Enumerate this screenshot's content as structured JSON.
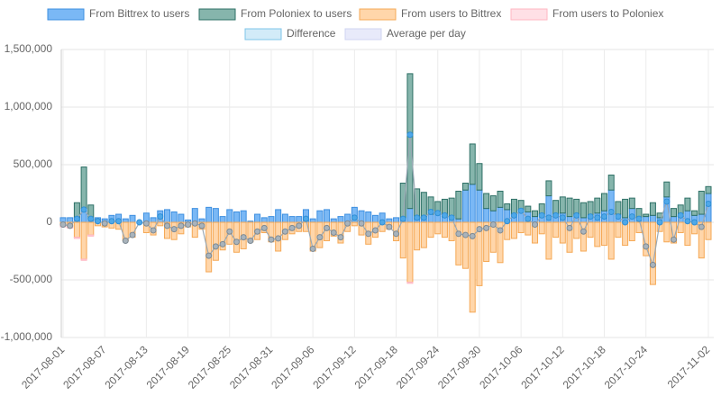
{
  "chart_data": {
    "type": "bar",
    "categories": [
      "2017-08-01",
      null,
      null,
      null,
      null,
      null,
      "2017-08-07",
      null,
      null,
      null,
      null,
      null,
      "2017-08-13",
      null,
      null,
      null,
      null,
      null,
      "2017-08-19",
      null,
      null,
      null,
      null,
      null,
      "2017-08-25",
      null,
      null,
      null,
      null,
      null,
      "2017-08-31",
      null,
      null,
      null,
      null,
      null,
      "2017-09-06",
      null,
      null,
      null,
      null,
      null,
      "2017-09-12",
      null,
      null,
      null,
      null,
      null,
      "2017-09-18",
      null,
      null,
      null,
      null,
      null,
      "2017-09-24",
      null,
      null,
      null,
      null,
      null,
      "2017-09-30",
      null,
      null,
      null,
      null,
      null,
      "2017-10-06",
      null,
      null,
      null,
      null,
      null,
      "2017-10-12",
      null,
      null,
      null,
      null,
      null,
      "2017-10-18",
      null,
      null,
      null,
      null,
      null,
      "2017-10-24",
      null,
      null,
      null,
      null,
      null,
      null,
      null,
      null,
      "2017-11-02"
    ],
    "series": [
      {
        "name": "From Bittrex to users",
        "color": "#7ab8f5",
        "stroke": "#3d8fe0",
        "stack": "positive",
        "values": [
          40000,
          40000,
          40000,
          120000,
          30000,
          40000,
          30000,
          60000,
          70000,
          30000,
          60000,
          0,
          80000,
          40000,
          100000,
          110000,
          90000,
          70000,
          20000,
          120000,
          30000,
          130000,
          120000,
          50000,
          110000,
          90000,
          100000,
          10000,
          70000,
          40000,
          50000,
          110000,
          70000,
          50000,
          50000,
          110000,
          30000,
          100000,
          110000,
          30000,
          50000,
          70000,
          130000,
          100000,
          90000,
          60000,
          80000,
          30000,
          40000,
          40000,
          120000,
          30000,
          50000,
          70000,
          80000,
          50000,
          40000,
          30000,
          280000,
          330000,
          280000,
          120000,
          100000,
          130000,
          110000,
          70000,
          110000,
          90000,
          50000,
          70000,
          230000,
          70000,
          80000,
          50000,
          70000,
          40000,
          40000,
          80000,
          100000,
          280000,
          70000,
          40000,
          120000,
          30000,
          50000,
          60000,
          40000,
          220000,
          50000,
          50000,
          100000,
          60000,
          70000,
          250000
        ]
      },
      {
        "name": "From Poloniex to users",
        "color": "#86b5ac",
        "stroke": "#2e7066",
        "stack": "positive",
        "values": [
          0,
          0,
          130000,
          360000,
          120000,
          0,
          0,
          0,
          0,
          0,
          0,
          0,
          0,
          0,
          0,
          0,
          0,
          0,
          0,
          0,
          0,
          0,
          0,
          0,
          0,
          0,
          0,
          0,
          0,
          0,
          0,
          0,
          0,
          0,
          0,
          0,
          0,
          0,
          0,
          0,
          0,
          0,
          0,
          0,
          0,
          0,
          0,
          0,
          0,
          300000,
          1170000,
          260000,
          210000,
          150000,
          100000,
          150000,
          170000,
          240000,
          60000,
          350000,
          230000,
          130000,
          130000,
          140000,
          50000,
          130000,
          80000,
          50000,
          50000,
          90000,
          130000,
          120000,
          140000,
          160000,
          130000,
          130000,
          140000,
          130000,
          150000,
          130000,
          110000,
          160000,
          90000,
          90000,
          20000,
          110000,
          40000,
          130000,
          70000,
          100000,
          110000,
          40000,
          200000,
          60000
        ]
      },
      {
        "name": "From users to Bittrex",
        "color": "#ffd6aa",
        "stroke": "#f5a855",
        "stack": "negative",
        "values": [
          -30000,
          -40000,
          -130000,
          -320000,
          -110000,
          -30000,
          -40000,
          -50000,
          -60000,
          -160000,
          -130000,
          0,
          -90000,
          -110000,
          -30000,
          -140000,
          -150000,
          -100000,
          -40000,
          -130000,
          -60000,
          -430000,
          -330000,
          -240000,
          -190000,
          -260000,
          -230000,
          -170000,
          -150000,
          -90000,
          -170000,
          -250000,
          -150000,
          -100000,
          -80000,
          -80000,
          -250000,
          -220000,
          -160000,
          -120000,
          -180000,
          -80000,
          -30000,
          -110000,
          -190000,
          -130000,
          -80000,
          -60000,
          -160000,
          -310000,
          -520000,
          -240000,
          -220000,
          -130000,
          -100000,
          -130000,
          -160000,
          -370000,
          -400000,
          -780000,
          -550000,
          -340000,
          -260000,
          -350000,
          -150000,
          -140000,
          -90000,
          -110000,
          -180000,
          -100000,
          -320000,
          -130000,
          -180000,
          -260000,
          -140000,
          -250000,
          -130000,
          -210000,
          -200000,
          -320000,
          -130000,
          -200000,
          -160000,
          -90000,
          -290000,
          -540000,
          -80000,
          -170000,
          -180000,
          -90000,
          -200000,
          -100000,
          -310000,
          -150000
        ]
      },
      {
        "name": "From users to Poloniex",
        "color": "#ffe0e6",
        "stroke": "#ffb6c1",
        "stack": "negative",
        "values": [
          -10000,
          -10000,
          -10000,
          -10000,
          -10000,
          0,
          0,
          0,
          0,
          0,
          0,
          0,
          0,
          0,
          0,
          0,
          0,
          0,
          0,
          0,
          0,
          0,
          0,
          0,
          0,
          0,
          0,
          0,
          0,
          0,
          0,
          0,
          0,
          0,
          0,
          0,
          0,
          0,
          0,
          0,
          0,
          0,
          0,
          0,
          0,
          0,
          0,
          0,
          0,
          0,
          -10000,
          0,
          0,
          0,
          0,
          0,
          0,
          0,
          0,
          0,
          0,
          0,
          0,
          0,
          0,
          0,
          0,
          0,
          0,
          0,
          0,
          0,
          0,
          0,
          0,
          0,
          0,
          0,
          0,
          0,
          0,
          0,
          0,
          0,
          0,
          0,
          0,
          0,
          0,
          0,
          0,
          0,
          0,
          0
        ]
      },
      {
        "name": "Difference",
        "color": "#d2ebf8",
        "stroke": "#7fc4e8",
        "kind": "line",
        "values": [
          -20000,
          -30000,
          30000,
          110000,
          30000,
          10000,
          -10000,
          10000,
          10000,
          -160000,
          -110000,
          0,
          -10000,
          -70000,
          50000,
          -30000,
          -60000,
          -30000,
          -20000,
          -10000,
          -30000,
          -290000,
          -210000,
          -190000,
          -80000,
          -170000,
          -130000,
          -160000,
          -80000,
          -50000,
          -150000,
          -140000,
          -80000,
          -50000,
          -30000,
          30000,
          -230000,
          -130000,
          -50000,
          -90000,
          -130000,
          -10000,
          40000,
          -10000,
          -100000,
          -70000,
          0,
          -40000,
          -100000,
          30000,
          760000,
          40000,
          40000,
          90000,
          80000,
          60000,
          40000,
          -100000,
          -110000,
          -120000,
          -60000,
          -50000,
          -20000,
          -70000,
          10000,
          60000,
          100000,
          30000,
          -20000,
          60000,
          40000,
          60000,
          40000,
          -50000,
          60000,
          -80000,
          50000,
          40000,
          50000,
          90000,
          50000,
          0,
          50000,
          30000,
          -210000,
          -370000,
          0,
          180000,
          -150000,
          60000,
          10000,
          0,
          -40000,
          160000
        ]
      },
      {
        "name": "Average per day",
        "color": "#e8eafa",
        "stroke": "#cfd4f2",
        "kind": "legend"
      }
    ],
    "ylim": [
      -1000000,
      1500000
    ],
    "yticks": [
      {
        "value": -1000000,
        "label": "-1,000,000"
      },
      {
        "value": -500000,
        "label": "-500,000"
      },
      0,
      {
        "value": 500000,
        "label": "500,000"
      },
      {
        "value": 1000000,
        "label": "1,000,000"
      },
      {
        "value": 1500000,
        "label": "1,500,000"
      }
    ],
    "grid": true
  }
}
